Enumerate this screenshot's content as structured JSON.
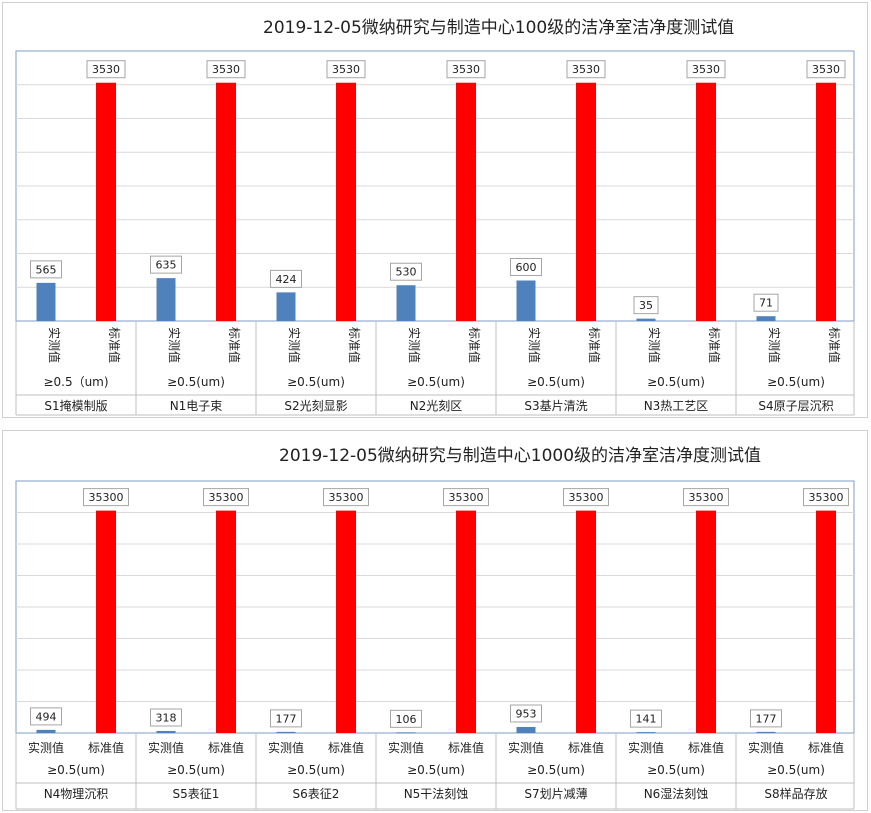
{
  "chart_data": [
    {
      "type": "bar",
      "title": "2019-12-05微纳研究与制造中心100级的洁净室洁净度测试值",
      "series_labels": [
        "实测值",
        "标准值"
      ],
      "colors": {
        "measured": "#4f81bd",
        "standard": "#ff0000"
      },
      "vertical_series_labels": true,
      "ylim": [
        0,
        4000
      ],
      "groups": [
        {
          "name": "S1掩模制版",
          "particle": "≥0.5（um)",
          "measured": 565,
          "standard": 3530
        },
        {
          "name": "N1电子束",
          "particle": "≥0.5(um)",
          "measured": 635,
          "standard": 3530
        },
        {
          "name": "S2光刻显影",
          "particle": "≥0.5(um)",
          "measured": 424,
          "standard": 3530
        },
        {
          "name": "N2光刻区",
          "particle": "≥0.5(um)",
          "measured": 530,
          "standard": 3530
        },
        {
          "name": "S3基片清洗",
          "particle": "≥0.5(um)",
          "measured": 600,
          "standard": 3530
        },
        {
          "name": "N3热工艺区",
          "particle": "≥0.5(um)",
          "measured": 35,
          "standard": 3530
        },
        {
          "name": "S4原子层沉积",
          "particle": "≥0.5(um)",
          "measured": 71,
          "standard": 3530
        }
      ]
    },
    {
      "type": "bar",
      "title": "2019-12-05微纳研究与制造中心1000级的洁净室洁净度测试值",
      "series_labels": [
        "实测值",
        "标准值"
      ],
      "colors": {
        "measured": "#4f81bd",
        "standard": "#ff0000"
      },
      "vertical_series_labels": false,
      "ylim": [
        0,
        40000
      ],
      "groups": [
        {
          "name": "N4物理沉积",
          "particle": "≥0.5(um)",
          "measured": 494,
          "standard": 35300
        },
        {
          "name": "S5表征1",
          "particle": "≥0.5(um)",
          "measured": 318,
          "standard": 35300
        },
        {
          "name": "S6表征2",
          "particle": "≥0.5(um)",
          "measured": 177,
          "standard": 35300
        },
        {
          "name": "N5干法刻蚀",
          "particle": "≥0.5(um)",
          "measured": 106,
          "standard": 35300
        },
        {
          "name": "S7划片减薄",
          "particle": "≥0.5(um)",
          "measured": 953,
          "standard": 35300
        },
        {
          "name": "N6湿法刻蚀",
          "particle": "≥0.5(um)",
          "measured": 141,
          "standard": 35300
        },
        {
          "name": "S8样品存放",
          "particle": "≥0.5(um)",
          "measured": 177,
          "standard": 35300
        }
      ]
    }
  ]
}
